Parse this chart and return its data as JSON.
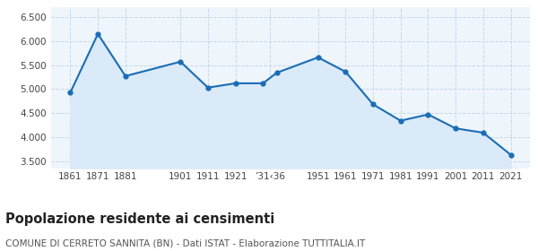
{
  "years": [
    1861,
    1871,
    1881,
    1901,
    1911,
    1921,
    1931,
    1936,
    1951,
    1961,
    1971,
    1981,
    1991,
    2001,
    2011,
    2021
  ],
  "population": [
    4930,
    6150,
    5270,
    5570,
    5030,
    5120,
    5120,
    5340,
    5660,
    5360,
    4680,
    4340,
    4470,
    4180,
    4090,
    3630
  ],
  "yticks": [
    3500,
    4000,
    4500,
    5000,
    5500,
    6000,
    6500
  ],
  "ylim": [
    3350,
    6700
  ],
  "xlim": [
    1854,
    2028
  ],
  "line_color": "#1a6db5",
  "fill_color": "#daeaf8",
  "marker_color": "#1a6db5",
  "grid_color": "#c5d8ea",
  "bg_color": "#eef5fb",
  "title": "Popolazione residente ai censimenti",
  "subtitle": "COMUNE DI CERRETO SANNITA (BN) - Dati ISTAT - Elaborazione TUTTITALIA.IT",
  "title_fontsize": 10.5,
  "subtitle_fontsize": 7.5,
  "tick_fontsize": 7.5,
  "xtick_positions": [
    1861,
    1871,
    1881,
    1901,
    1911,
    1921,
    1933.5,
    1951,
    1961,
    1971,
    1981,
    1991,
    2001,
    2011,
    2021
  ],
  "xtick_labels": [
    "1861",
    "1871",
    "1881",
    "1901",
    "1911",
    "1921",
    "’31‹36",
    "1951",
    "1961",
    "1971",
    "1981",
    "1991",
    "2001",
    "2011",
    "2021"
  ]
}
